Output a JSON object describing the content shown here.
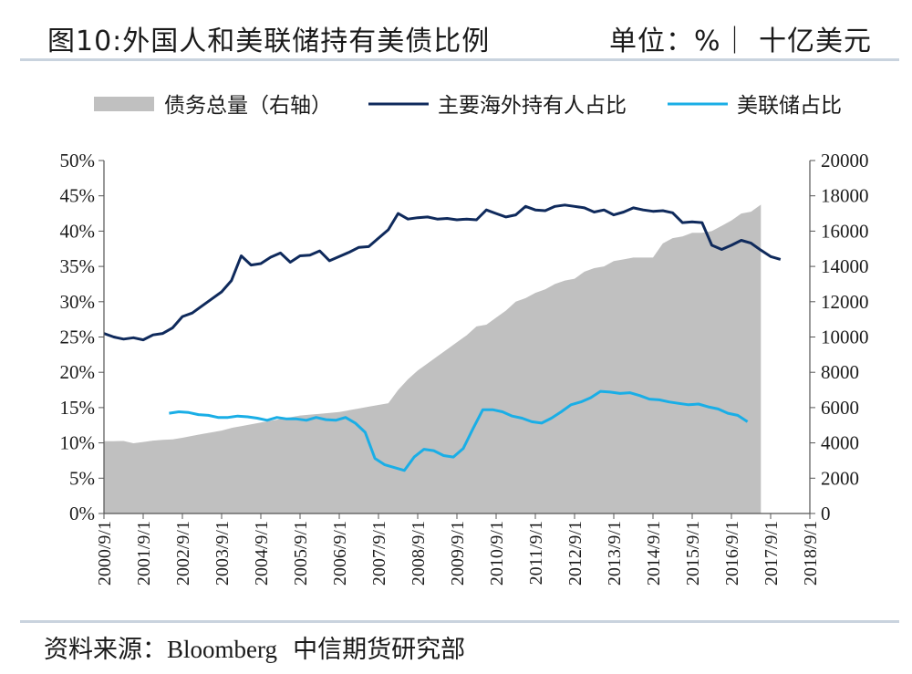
{
  "header": {
    "title": "图10:外国人和美联储持有美债比例",
    "unit": "单位：%｜ 十亿美元"
  },
  "footer": {
    "source_label": "资料来源：",
    "source_en": "Bloomberg",
    "source_cn": "中信期货研究部"
  },
  "colors": {
    "area": "#c0c0c0",
    "foreign": "#0f2a5c",
    "fed": "#1aaee6",
    "rule": "#c9d3de"
  },
  "chart_data": {
    "type": "line",
    "legend_position": "top",
    "grid": false,
    "x_ticks": [
      "2000/9/1",
      "2001/9/1",
      "2002/9/1",
      "2003/9/1",
      "2004/9/1",
      "2005/9/1",
      "2006/9/1",
      "2007/9/1",
      "2008/9/1",
      "2009/9/1",
      "2010/9/1",
      "2011/9/1",
      "2012/9/1",
      "2013/9/1",
      "2014/9/1",
      "2015/9/1",
      "2016/9/1",
      "2017/9/1",
      "2018/9/1"
    ],
    "y_left": {
      "ticks": [
        "0%",
        "5%",
        "10%",
        "15%",
        "20%",
        "25%",
        "30%",
        "35%",
        "40%",
        "45%",
        "50%"
      ],
      "range": [
        0,
        50
      ]
    },
    "y_right": {
      "ticks": [
        "0",
        "2000",
        "4000",
        "6000",
        "8000",
        "10000",
        "12000",
        "14000",
        "16000",
        "18000",
        "20000"
      ],
      "range": [
        0,
        20000
      ]
    },
    "series": [
      {
        "name": "债务总量（右轴）",
        "kind": "area",
        "axis": "right",
        "start": 2000.67,
        "step": 0.25,
        "values": [
          4100,
          4100,
          4110,
          3980,
          4050,
          4130,
          4170,
          4200,
          4290,
          4400,
          4500,
          4600,
          4700,
          4850,
          4950,
          5050,
          5150,
          5250,
          5350,
          5450,
          5550,
          5600,
          5650,
          5700,
          5750,
          5850,
          5950,
          6050,
          6150,
          6250,
          7000,
          7600,
          8100,
          8500,
          8900,
          9300,
          9700,
          10100,
          10600,
          10700,
          11100,
          11500,
          12000,
          12200,
          12500,
          12700,
          13000,
          13200,
          13300,
          13700,
          13900,
          14000,
          14300,
          14400,
          14500,
          14500,
          14500,
          15300,
          15600,
          15700,
          15900,
          15900,
          16000,
          16300,
          16600,
          17000,
          17100,
          17500
        ]
      },
      {
        "name": "主要海外持有人占比",
        "kind": "line",
        "axis": "left",
        "start": 2000.67,
        "step": 0.25,
        "values": [
          25.5,
          25.0,
          24.7,
          24.9,
          24.6,
          25.3,
          25.5,
          26.3,
          27.9,
          28.4,
          29.4,
          30.4,
          31.4,
          33.0,
          36.5,
          35.2,
          35.4,
          36.3,
          36.9,
          35.6,
          36.5,
          36.6,
          37.2,
          35.8,
          36.4,
          37.0,
          37.7,
          37.8,
          39.0,
          40.2,
          42.5,
          41.7,
          41.9,
          42.0,
          41.7,
          41.8,
          41.6,
          41.7,
          41.6,
          43.0,
          42.5,
          42.0,
          42.3,
          43.5,
          43.0,
          42.9,
          43.5,
          43.7,
          43.5,
          43.3,
          42.7,
          43.0,
          42.3,
          42.7,
          43.3,
          43.0,
          42.8,
          42.9,
          42.6,
          41.2,
          41.3,
          41.2,
          38.0,
          37.4,
          38.0,
          38.7,
          38.3,
          37.3,
          36.4,
          36.0
        ]
      },
      {
        "name": "美联储占比",
        "kind": "line",
        "axis": "left",
        "start": 2002.33,
        "step": 0.25,
        "values": [
          14.2,
          14.4,
          14.3,
          14.0,
          13.9,
          13.6,
          13.6,
          13.8,
          13.7,
          13.5,
          13.2,
          13.6,
          13.4,
          13.4,
          13.2,
          13.6,
          13.3,
          13.2,
          13.6,
          12.8,
          11.5,
          7.8,
          6.9,
          6.5,
          6.1,
          8.0,
          9.1,
          8.9,
          8.2,
          8.0,
          9.2,
          12.0,
          14.7,
          14.7,
          14.4,
          13.8,
          13.5,
          13.0,
          12.8,
          13.5,
          14.4,
          15.4,
          15.8,
          16.4,
          17.3,
          17.2,
          17.0,
          17.1,
          16.7,
          16.2,
          16.1,
          15.8,
          15.6,
          15.4,
          15.5,
          15.1,
          14.8,
          14.2,
          13.9,
          13.0
        ]
      }
    ]
  }
}
